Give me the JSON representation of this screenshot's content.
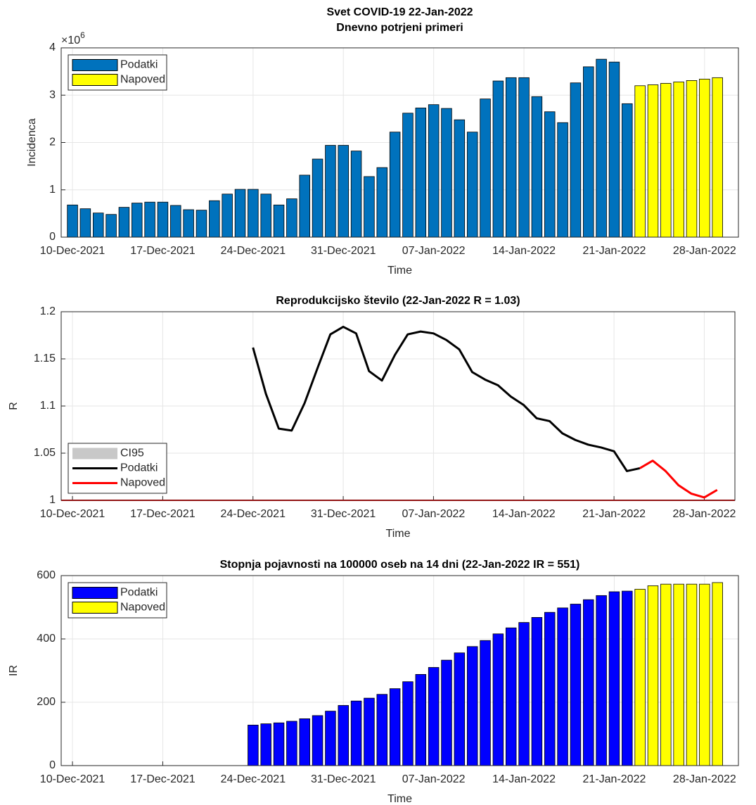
{
  "chart_data": [
    {
      "type": "bar",
      "title": [
        "Svet COVID-19 22-Jan-2022",
        "Dnevno potrjeni primeri"
      ],
      "ylabel": "Incidenca",
      "xlabel": "Time",
      "y_multiplier": {
        "base": "×10",
        "exponent": "6"
      },
      "x": [
        "2021-12-10",
        "2021-12-11",
        "2021-12-12",
        "2021-12-13",
        "2021-12-14",
        "2021-12-15",
        "2021-12-16",
        "2021-12-17",
        "2021-12-18",
        "2021-12-19",
        "2021-12-20",
        "2021-12-21",
        "2021-12-22",
        "2021-12-23",
        "2021-12-24",
        "2021-12-25",
        "2021-12-26",
        "2021-12-27",
        "2021-12-28",
        "2021-12-29",
        "2021-12-30",
        "2021-12-31",
        "2022-01-01",
        "2022-01-02",
        "2022-01-03",
        "2022-01-04",
        "2022-01-05",
        "2022-01-06",
        "2022-01-07",
        "2022-01-08",
        "2022-01-09",
        "2022-01-10",
        "2022-01-11",
        "2022-01-12",
        "2022-01-13",
        "2022-01-14",
        "2022-01-15",
        "2022-01-16",
        "2022-01-17",
        "2022-01-18",
        "2022-01-19",
        "2022-01-20",
        "2022-01-21",
        "2022-01-22",
        "2022-01-23",
        "2022-01-24",
        "2022-01-25",
        "2022-01-26",
        "2022-01-27",
        "2022-01-28",
        "2022-01-29"
      ],
      "series": [
        {
          "name": "Podatki",
          "color": "#0072bd",
          "values": [
            0.68,
            0.6,
            0.51,
            0.48,
            0.63,
            0.72,
            0.74,
            0.74,
            0.67,
            0.58,
            0.57,
            0.77,
            0.91,
            1.01,
            1.01,
            0.91,
            0.68,
            0.81,
            1.31,
            1.65,
            1.94,
            1.94,
            1.82,
            1.28,
            1.47,
            2.22,
            2.62,
            2.73,
            2.8,
            2.72,
            2.48,
            2.22,
            2.92,
            3.3,
            3.37,
            3.37,
            2.97,
            2.65,
            2.42,
            3.26,
            3.6,
            3.76,
            3.7,
            2.82,
            null,
            null,
            null,
            null,
            null,
            null,
            null
          ]
        },
        {
          "name": "Napoved",
          "color": "#ffff00",
          "values": [
            null,
            null,
            null,
            null,
            null,
            null,
            null,
            null,
            null,
            null,
            null,
            null,
            null,
            null,
            null,
            null,
            null,
            null,
            null,
            null,
            null,
            null,
            null,
            null,
            null,
            null,
            null,
            null,
            null,
            null,
            null,
            null,
            null,
            null,
            null,
            null,
            null,
            null,
            null,
            null,
            null,
            null,
            null,
            null,
            3.2,
            3.22,
            3.25,
            3.28,
            3.31,
            3.34,
            3.37
          ]
        }
      ],
      "xlim": [
        "2021-12-09T03:00:00Z",
        "2022-01-30T15:00:00Z"
      ],
      "xticks": [
        {
          "value": "2021-12-10",
          "label": "10-Dec-2021"
        },
        {
          "value": "2021-12-17",
          "label": "17-Dec-2021"
        },
        {
          "value": "2021-12-24",
          "label": "24-Dec-2021"
        },
        {
          "value": "2021-12-31",
          "label": "31-Dec-2021"
        },
        {
          "value": "2022-01-07",
          "label": "07-Jan-2022"
        },
        {
          "value": "2022-01-14",
          "label": "14-Jan-2022"
        },
        {
          "value": "2022-01-21",
          "label": "21-Jan-2022"
        },
        {
          "value": "2022-01-28",
          "label": "28-Jan-2022"
        }
      ],
      "ylim": [
        0,
        4
      ],
      "yticks": [
        0,
        1,
        2,
        3,
        4
      ],
      "grid": true,
      "legend": "northwest"
    },
    {
      "type": "line",
      "title": [
        "Reprodukcijsko število (22-Jan-2022 R = 1.03)"
      ],
      "ylabel": "R",
      "xlabel": "Time",
      "x": [
        "2021-12-10",
        "2021-12-11",
        "2021-12-12",
        "2021-12-13",
        "2021-12-14",
        "2021-12-15",
        "2021-12-16",
        "2021-12-17",
        "2021-12-18",
        "2021-12-19",
        "2021-12-20",
        "2021-12-21",
        "2021-12-22",
        "2021-12-23",
        "2021-12-24",
        "2021-12-25",
        "2021-12-26",
        "2021-12-27",
        "2021-12-28",
        "2021-12-29",
        "2021-12-30",
        "2021-12-31",
        "2022-01-01",
        "2022-01-02",
        "2022-01-03",
        "2022-01-04",
        "2022-01-05",
        "2022-01-06",
        "2022-01-07",
        "2022-01-08",
        "2022-01-09",
        "2022-01-10",
        "2022-01-11",
        "2022-01-12",
        "2022-01-13",
        "2022-01-14",
        "2022-01-15",
        "2022-01-16",
        "2022-01-17",
        "2022-01-18",
        "2022-01-19",
        "2022-01-20",
        "2022-01-21",
        "2022-01-22",
        "2022-01-23",
        "2022-01-24",
        "2022-01-25",
        "2022-01-26",
        "2022-01-27",
        "2022-01-28",
        "2022-01-29"
      ],
      "legend_extra": [
        {
          "name": "CI95",
          "color": "#c8c8c8"
        }
      ],
      "series": [
        {
          "name": "Podatki",
          "color": "#000000",
          "values": [
            null,
            null,
            null,
            null,
            null,
            null,
            null,
            null,
            null,
            null,
            null,
            null,
            null,
            null,
            1.162,
            1.113,
            1.076,
            1.074,
            1.103,
            1.14,
            1.176,
            1.184,
            1.177,
            1.137,
            1.127,
            1.154,
            1.176,
            1.179,
            1.177,
            1.17,
            1.16,
            1.136,
            1.128,
            1.122,
            1.11,
            1.101,
            1.087,
            1.084,
            1.071,
            1.064,
            1.059,
            1.056,
            1.052,
            1.031,
            1.034,
            null,
            null,
            null,
            null,
            null,
            null
          ]
        },
        {
          "name": "Napoved",
          "color": "#ff0000",
          "values": [
            null,
            null,
            null,
            null,
            null,
            null,
            null,
            null,
            null,
            null,
            null,
            null,
            null,
            null,
            null,
            null,
            null,
            null,
            null,
            null,
            null,
            null,
            null,
            null,
            null,
            null,
            null,
            null,
            null,
            null,
            null,
            null,
            null,
            null,
            null,
            null,
            null,
            null,
            null,
            null,
            null,
            null,
            null,
            null,
            1.034,
            1.042,
            1.031,
            1.016,
            1.007,
            1.003,
            1.011
          ]
        }
      ],
      "reference_line": {
        "value": 1,
        "color": "#ff0000"
      },
      "xlim": [
        "2021-12-09T03:00:00Z",
        "2022-01-30T09:00:00Z"
      ],
      "xticks": [
        {
          "value": "2021-12-10",
          "label": "10-Dec-2021"
        },
        {
          "value": "2021-12-17",
          "label": "17-Dec-2021"
        },
        {
          "value": "2021-12-24",
          "label": "24-Dec-2021"
        },
        {
          "value": "2021-12-31",
          "label": "31-Dec-2021"
        },
        {
          "value": "2022-01-07",
          "label": "07-Jan-2022"
        },
        {
          "value": "2022-01-14",
          "label": "14-Jan-2022"
        },
        {
          "value": "2022-01-21",
          "label": "21-Jan-2022"
        },
        {
          "value": "2022-01-28",
          "label": "28-Jan-2022"
        }
      ],
      "ylim": [
        1,
        1.2
      ],
      "yticks": [
        1,
        1.05,
        1.1,
        1.15,
        1.2
      ],
      "grid": true,
      "legend": "southwest"
    },
    {
      "type": "bar",
      "title": [
        "Stopnja pojavnosti na 100000 oseb na 14 dni (22-Jan-2022 IR = 551)"
      ],
      "ylabel": "IR",
      "xlabel": "Time",
      "x": [
        "2021-12-10",
        "2021-12-11",
        "2021-12-12",
        "2021-12-13",
        "2021-12-14",
        "2021-12-15",
        "2021-12-16",
        "2021-12-17",
        "2021-12-18",
        "2021-12-19",
        "2021-12-20",
        "2021-12-21",
        "2021-12-22",
        "2021-12-23",
        "2021-12-24",
        "2021-12-25",
        "2021-12-26",
        "2021-12-27",
        "2021-12-28",
        "2021-12-29",
        "2021-12-30",
        "2021-12-31",
        "2022-01-01",
        "2022-01-02",
        "2022-01-03",
        "2022-01-04",
        "2022-01-05",
        "2022-01-06",
        "2022-01-07",
        "2022-01-08",
        "2022-01-09",
        "2022-01-10",
        "2022-01-11",
        "2022-01-12",
        "2022-01-13",
        "2022-01-14",
        "2022-01-15",
        "2022-01-16",
        "2022-01-17",
        "2022-01-18",
        "2022-01-19",
        "2022-01-20",
        "2022-01-21",
        "2022-01-22",
        "2022-01-23",
        "2022-01-24",
        "2022-01-25",
        "2022-01-26",
        "2022-01-27",
        "2022-01-28",
        "2022-01-29"
      ],
      "series": [
        {
          "name": "Podatki",
          "color": "#0000ff",
          "values": [
            null,
            null,
            null,
            null,
            null,
            null,
            null,
            null,
            null,
            null,
            null,
            null,
            null,
            null,
            128,
            132,
            135,
            140,
            148,
            158,
            172,
            190,
            204,
            213,
            225,
            243,
            265,
            288,
            310,
            333,
            356,
            376,
            395,
            416,
            435,
            452,
            468,
            484,
            498,
            510,
            524,
            537,
            549,
            551,
            null,
            null,
            null,
            null,
            null,
            null,
            null
          ]
        },
        {
          "name": "Napoved",
          "color": "#ffff00",
          "values": [
            null,
            null,
            null,
            null,
            null,
            null,
            null,
            null,
            null,
            null,
            null,
            null,
            null,
            null,
            null,
            null,
            null,
            null,
            null,
            null,
            null,
            null,
            null,
            null,
            null,
            null,
            null,
            null,
            null,
            null,
            null,
            null,
            null,
            null,
            null,
            null,
            null,
            null,
            null,
            null,
            null,
            null,
            null,
            null,
            557,
            568,
            573,
            573,
            573,
            573,
            578
          ]
        }
      ],
      "xlim": [
        "2021-12-09T03:00:00Z",
        "2022-01-30T15:00:00Z"
      ],
      "xticks": [
        {
          "value": "2021-12-10",
          "label": "10-Dec-2021"
        },
        {
          "value": "2021-12-17",
          "label": "17-Dec-2021"
        },
        {
          "value": "2021-12-24",
          "label": "24-Dec-2021"
        },
        {
          "value": "2021-12-31",
          "label": "31-Dec-2021"
        },
        {
          "value": "2022-01-07",
          "label": "07-Jan-2022"
        },
        {
          "value": "2022-01-14",
          "label": "14-Jan-2022"
        },
        {
          "value": "2022-01-21",
          "label": "21-Jan-2022"
        },
        {
          "value": "2022-01-28",
          "label": "28-Jan-2022"
        }
      ],
      "ylim": [
        0,
        600
      ],
      "yticks": [
        0,
        200,
        400,
        600
      ],
      "grid": true,
      "legend": "northwest"
    }
  ]
}
